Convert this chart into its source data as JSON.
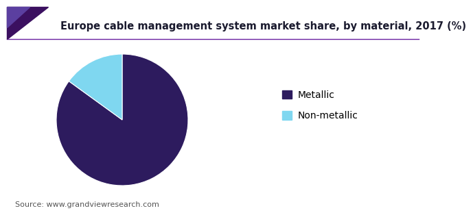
{
  "title": "Europe cable management system market share, by material, 2017 (%)",
  "labels": [
    "Metallic",
    "Non-metallic"
  ],
  "values": [
    85,
    15
  ],
  "colors": [
    "#2d1b5e",
    "#7fd7f0"
  ],
  "legend_labels": [
    "Metallic",
    "Non-metallic"
  ],
  "source_text": "Source: www.grandviewresearch.com",
  "title_fontsize": 10.5,
  "legend_fontsize": 10,
  "source_fontsize": 8,
  "background_color": "#ffffff",
  "startangle": 90,
  "title_color": "#1a1a2e",
  "line_color": "#6a1fa0",
  "corner_dark": "#3b1060",
  "corner_light": "#5b3fa0"
}
